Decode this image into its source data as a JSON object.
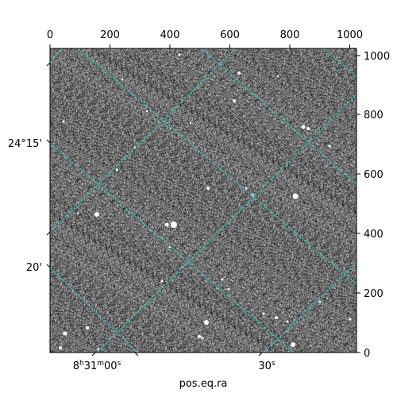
{
  "figure": {
    "xlabel": "pos.eq.ra",
    "bottom_ra_ticks": [
      {
        "h": "8",
        "m": "31",
        "s": "00"
      },
      {
        "h": "",
        "m": "",
        "s": "30"
      }
    ],
    "left_dec_ticks": [
      "24°15'",
      "20'"
    ],
    "top_pixel_ticks": [
      "0",
      "200",
      "400",
      "600",
      "800",
      "1000"
    ],
    "right_pixel_ticks": [
      "0",
      "200",
      "400",
      "600",
      "800",
      "1000"
    ],
    "colors": {
      "background": "#7a7a7a",
      "grid": "#2ec4c4",
      "frame": "#000000"
    }
  }
}
